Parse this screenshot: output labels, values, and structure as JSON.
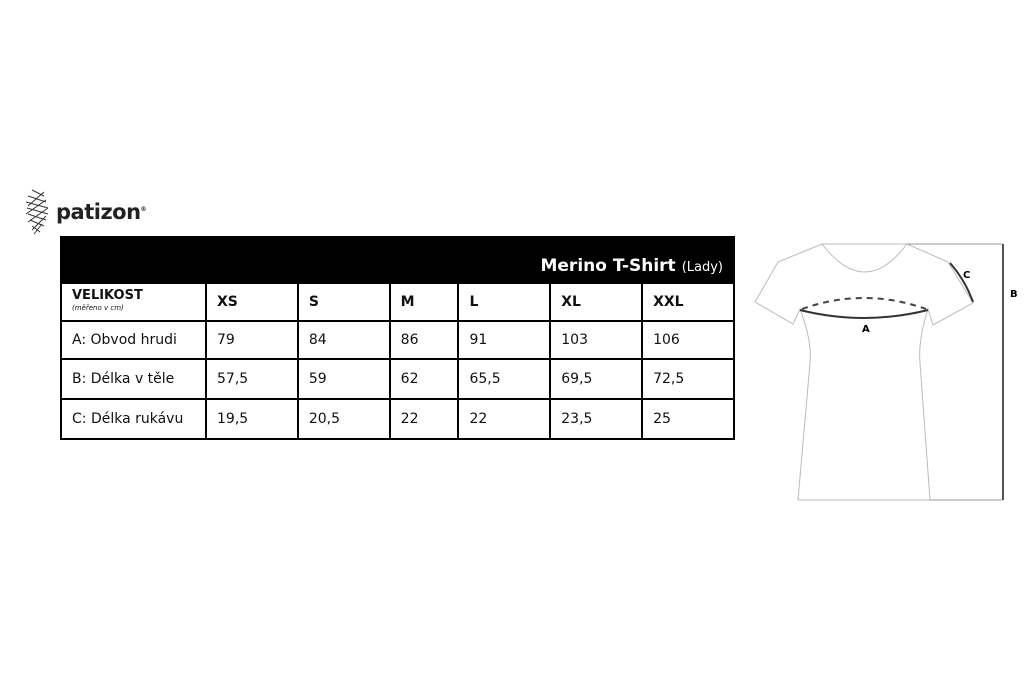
{
  "brand": {
    "name": "patizon",
    "mark": "®"
  },
  "table": {
    "title": "Merino T-Shirt",
    "subtitle": "(Lady)",
    "size_label": "VELIKOST",
    "size_note": "(měřeno v cm)",
    "sizes": [
      "XS",
      "S",
      "M",
      "L",
      "XL",
      "XXL"
    ],
    "rows": [
      {
        "label": "A: Obvod hrudi",
        "values": [
          "79",
          "84",
          "86",
          "91",
          "103",
          "106"
        ]
      },
      {
        "label": "B: Délka v těle",
        "values": [
          "57,5",
          "59",
          "62",
          "65,5",
          "69,5",
          "72,5"
        ]
      },
      {
        "label": "C: Délka rukávu",
        "values": [
          "19,5",
          "20,5",
          "22",
          "22",
          "23,5",
          "25"
        ]
      }
    ]
  },
  "diagram": {
    "labels": {
      "a": "A",
      "b": "B",
      "c": "C"
    }
  }
}
